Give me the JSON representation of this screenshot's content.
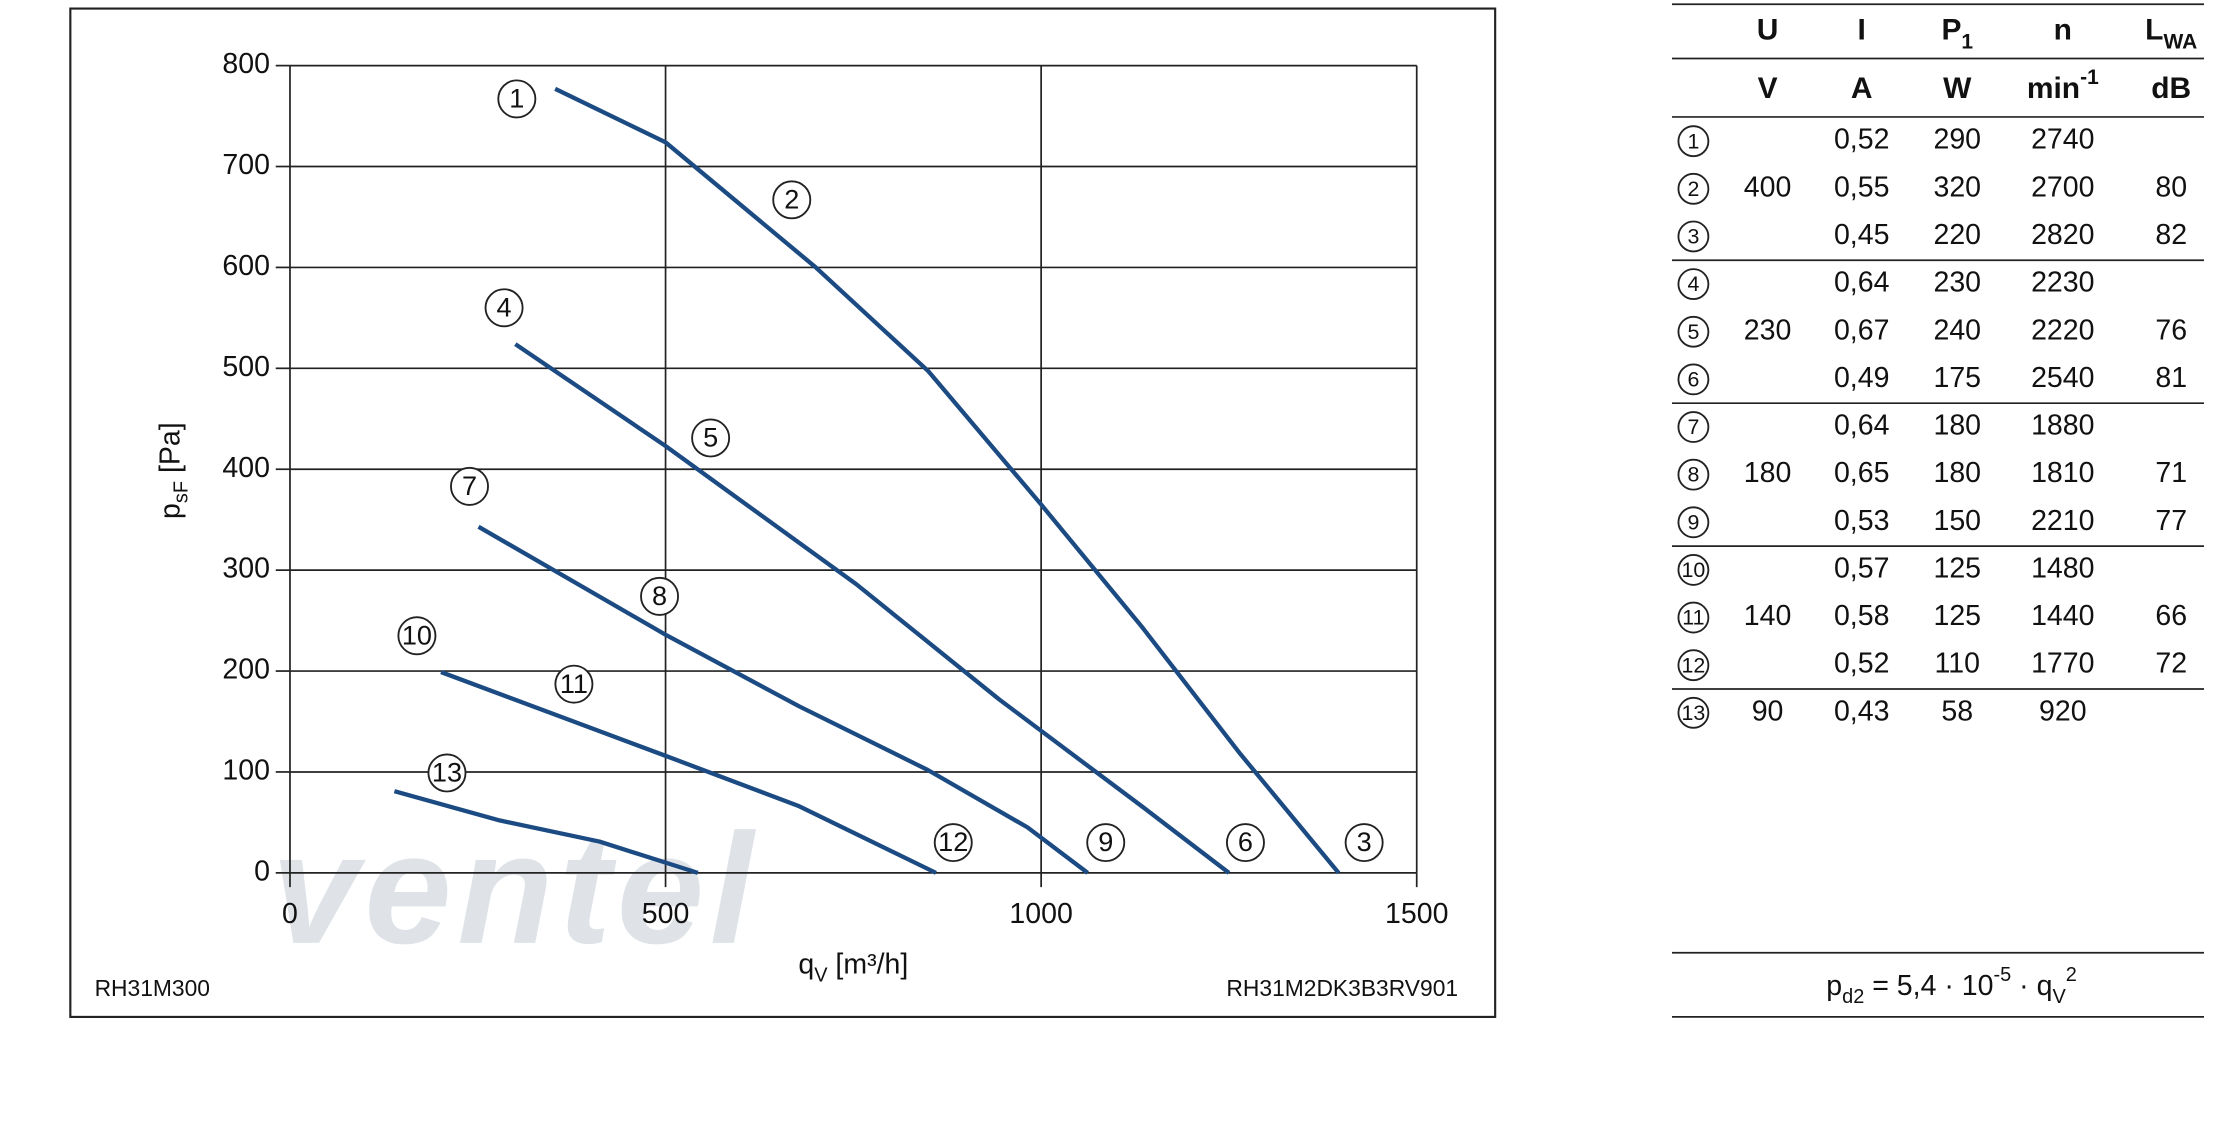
{
  "chart_data": {
    "type": "line",
    "y_label": {
      "main": "p",
      "sub": "sF",
      "rest": " [Pa]"
    },
    "x_label": {
      "main": "q",
      "sub": "V",
      "rest": " [m³/h]"
    },
    "footer_left": "RH31M300",
    "footer_right": "RH31M2DK3B3RV901",
    "watermark": "ventel",
    "color": "#1b4b82",
    "xlim": [
      0,
      1500
    ],
    "xticks": [
      0,
      500,
      1000,
      1500
    ],
    "ylim": [
      0,
      800
    ],
    "yticks": [
      0,
      100,
      200,
      300,
      400,
      500,
      600,
      700,
      800
    ],
    "grid": true,
    "series": [
      {
        "x": [
          353,
          500,
          700,
          850,
          1000,
          1135,
          1265,
          1396
        ],
        "values": [
          777,
          724,
          600,
          497,
          365,
          243,
          118,
          0
        ]
      },
      {
        "x": [
          300,
          500,
          754,
          944,
          1134,
          1250
        ],
        "values": [
          524,
          423,
          286,
          172,
          66,
          0
        ]
      },
      {
        "x": [
          251,
          500,
          678,
          849,
          982,
          1062
        ],
        "values": [
          343,
          236,
          165,
          102,
          45,
          0
        ]
      },
      {
        "x": [
          201,
          374,
          500,
          678,
          860
        ],
        "values": [
          199,
          151,
          116,
          66,
          0
        ]
      },
      {
        "x": [
          139,
          279,
          412,
          543
        ],
        "values": [
          81,
          52,
          31,
          0
        ]
      }
    ],
    "annotations": [
      {
        "text": "1",
        "x": 302,
        "y": 767
      },
      {
        "text": "2",
        "x": 668,
        "y": 667
      },
      {
        "text": "3",
        "x": 1430,
        "y": 30
      },
      {
        "text": "4",
        "x": 285,
        "y": 560
      },
      {
        "text": "5",
        "x": 560,
        "y": 431
      },
      {
        "text": "6",
        "x": 1272,
        "y": 30
      },
      {
        "text": "7",
        "x": 239,
        "y": 383
      },
      {
        "text": "8",
        "x": 492,
        "y": 274
      },
      {
        "text": "9",
        "x": 1086,
        "y": 30
      },
      {
        "text": "10",
        "x": 169,
        "y": 235
      },
      {
        "text": "11",
        "x": 378,
        "y": 187
      },
      {
        "text": "12",
        "x": 883,
        "y": 30
      },
      {
        "text": "13",
        "x": 209,
        "y": 99
      }
    ]
  },
  "table": {
    "header": [
      {
        "main": "U"
      },
      {
        "main": "I"
      },
      {
        "main": "P",
        "sub": "1"
      },
      {
        "main": "n"
      },
      {
        "main": "L",
        "sub": "WA"
      }
    ],
    "units": [
      {
        "main": "V"
      },
      {
        "main": "A"
      },
      {
        "main": "W"
      },
      {
        "main": "min",
        "sup": "-1"
      },
      {
        "main": "dB"
      }
    ],
    "groups": [
      {
        "u": "400",
        "rows": [
          {
            "id": "1",
            "i": "0,52",
            "p": "290",
            "n": "2740"
          },
          {
            "id": "2",
            "i": "0,55",
            "p": "320",
            "n": "2700",
            "lwa": "80"
          },
          {
            "id": "3",
            "i": "0,45",
            "p": "220",
            "n": "2820",
            "lwa": "82"
          }
        ]
      },
      {
        "u": "230",
        "rows": [
          {
            "id": "4",
            "i": "0,64",
            "p": "230",
            "n": "2230"
          },
          {
            "id": "5",
            "i": "0,67",
            "p": "240",
            "n": "2220",
            "lwa": "76"
          },
          {
            "id": "6",
            "i": "0,49",
            "p": "175",
            "n": "2540",
            "lwa": "81"
          }
        ]
      },
      {
        "u": "180",
        "rows": [
          {
            "id": "7",
            "i": "0,64",
            "p": "180",
            "n": "1880"
          },
          {
            "id": "8",
            "i": "0,65",
            "p": "180",
            "n": "1810",
            "lwa": "71"
          },
          {
            "id": "9",
            "i": "0,53",
            "p": "150",
            "n": "2210",
            "lwa": "77"
          }
        ]
      },
      {
        "u": "140",
        "rows": [
          {
            "id": "10",
            "i": "0,57",
            "p": "125",
            "n": "1480"
          },
          {
            "id": "11",
            "i": "0,58",
            "p": "125",
            "n": "1440",
            "lwa": "66"
          },
          {
            "id": "12",
            "i": "0,52",
            "p": "110",
            "n": "1770",
            "lwa": "72"
          }
        ]
      },
      {
        "u": "90",
        "rows": [
          {
            "id": "13",
            "i": "0,43",
            "p": "58",
            "n": "920"
          }
        ]
      }
    ],
    "formula": [
      {
        "t": "p"
      },
      {
        "sub": "d2"
      },
      {
        "t": " = 5,4 · 10"
      },
      {
        "sup": "-5"
      },
      {
        "t": " · q"
      },
      {
        "sub": "V"
      },
      {
        "sup": "2"
      }
    ]
  }
}
